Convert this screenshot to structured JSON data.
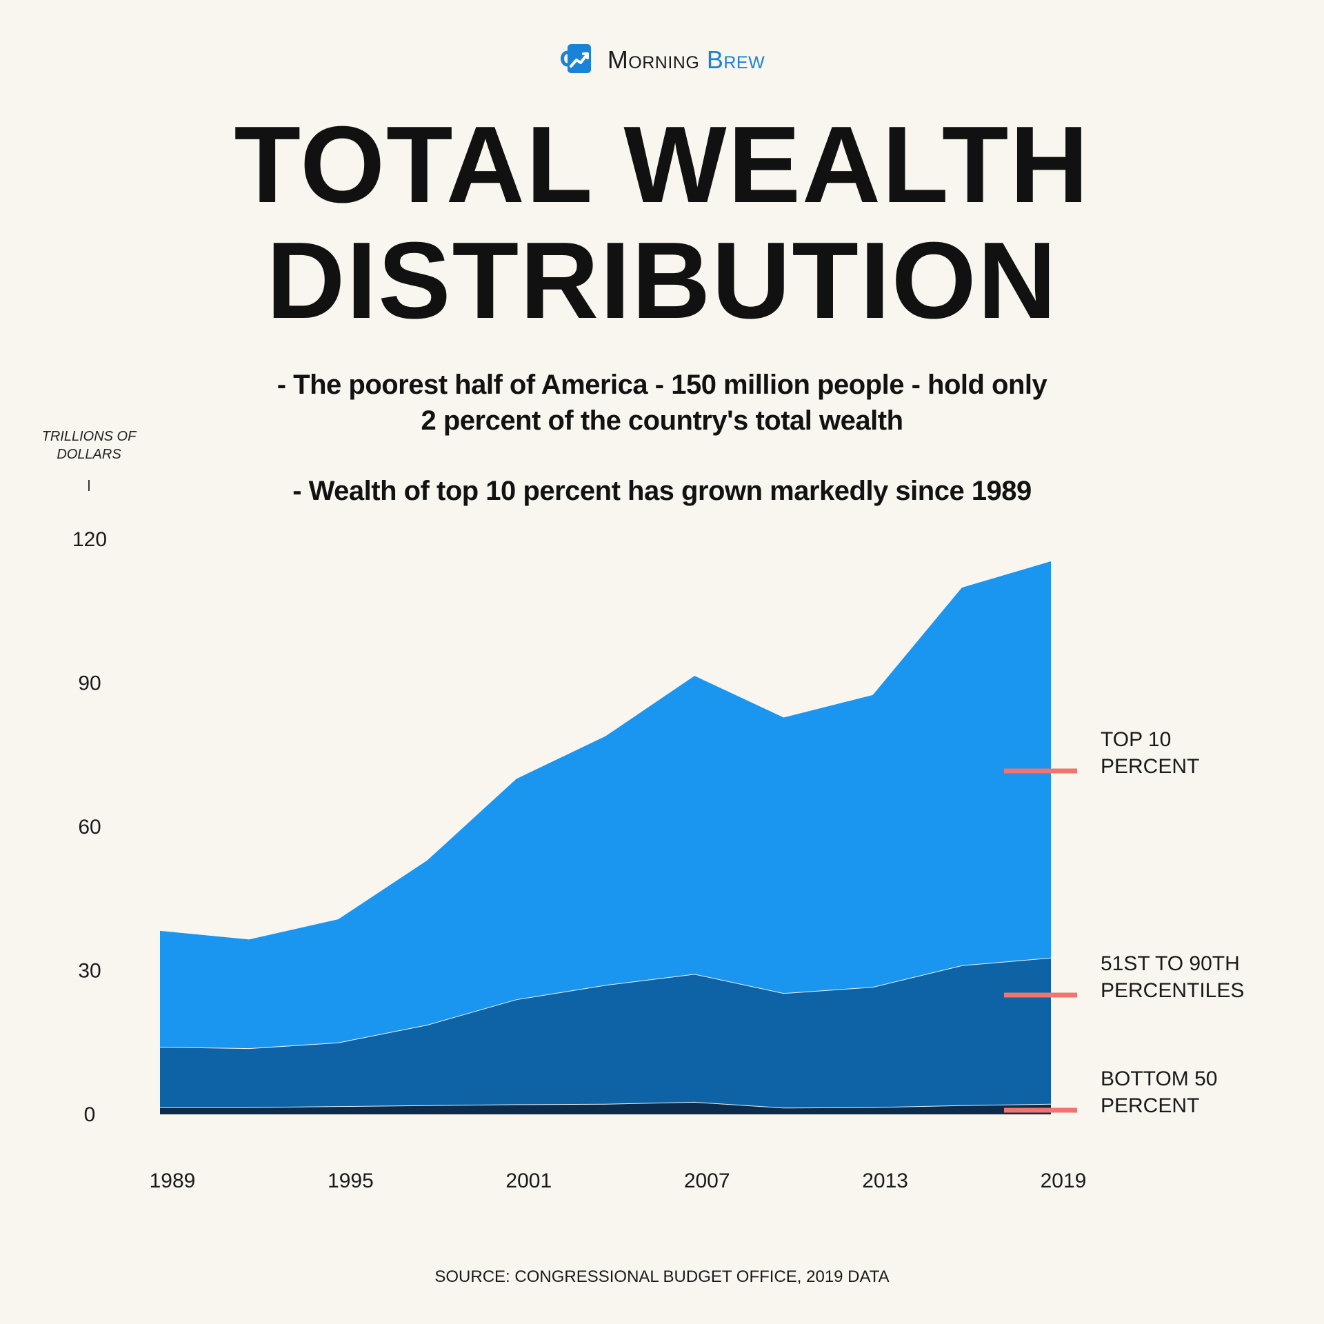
{
  "brand": {
    "name_part1": "Morning",
    "name_part2": "Brew",
    "icon": "coffee-mug-chart-icon",
    "accent_color": "#1a83d9"
  },
  "title_line1": "TOTAL WEALTH",
  "title_line2": "DISTRIBUTION",
  "subtitle_line1a": "- The poorest half of America - 150 million people - hold only",
  "subtitle_line1b": "2 percent of the country's total wealth",
  "subtitle_line2": "- Wealth of top 10 percent has grown markedly since 1989",
  "source": "SOURCE:  CONGRESSIONAL BUDGET OFFICE, 2019 DATA",
  "chart_data": {
    "type": "area",
    "stacked": true,
    "ylabel": "TRILLIONS OF DOLLARS",
    "ylim": [
      0,
      120
    ],
    "yticks": [
      0,
      30,
      60,
      90,
      120
    ],
    "x": [
      1989,
      1992,
      1995,
      1998,
      2001,
      2004,
      2007,
      2010,
      2013,
      2016,
      2019
    ],
    "xticks": [
      1989,
      1995,
      2001,
      2007,
      2013,
      2019
    ],
    "grid": false,
    "legend": "right, inline labels with red markers",
    "series": [
      {
        "name": "BOTTOM 50 PERCENT",
        "color": "#0d2b4a",
        "values": [
          1.5,
          1.5,
          1.7,
          1.9,
          2.1,
          2.2,
          2.6,
          1.4,
          1.5,
          1.9,
          2.2
        ]
      },
      {
        "name": "51ST TO 90TH PERCENTILES",
        "color": "#0e63a6",
        "values": [
          12.6,
          12.3,
          13.3,
          16.8,
          21.9,
          24.8,
          26.7,
          23.9,
          25.1,
          29.2,
          30.5
        ]
      },
      {
        "name": "TOP 10 PERCENT",
        "color": "#1a95f0",
        "values": [
          24.2,
          22.7,
          25.7,
          34.3,
          46.0,
          51.9,
          62.2,
          57.5,
          60.9,
          78.8,
          82.7
        ]
      }
    ]
  }
}
